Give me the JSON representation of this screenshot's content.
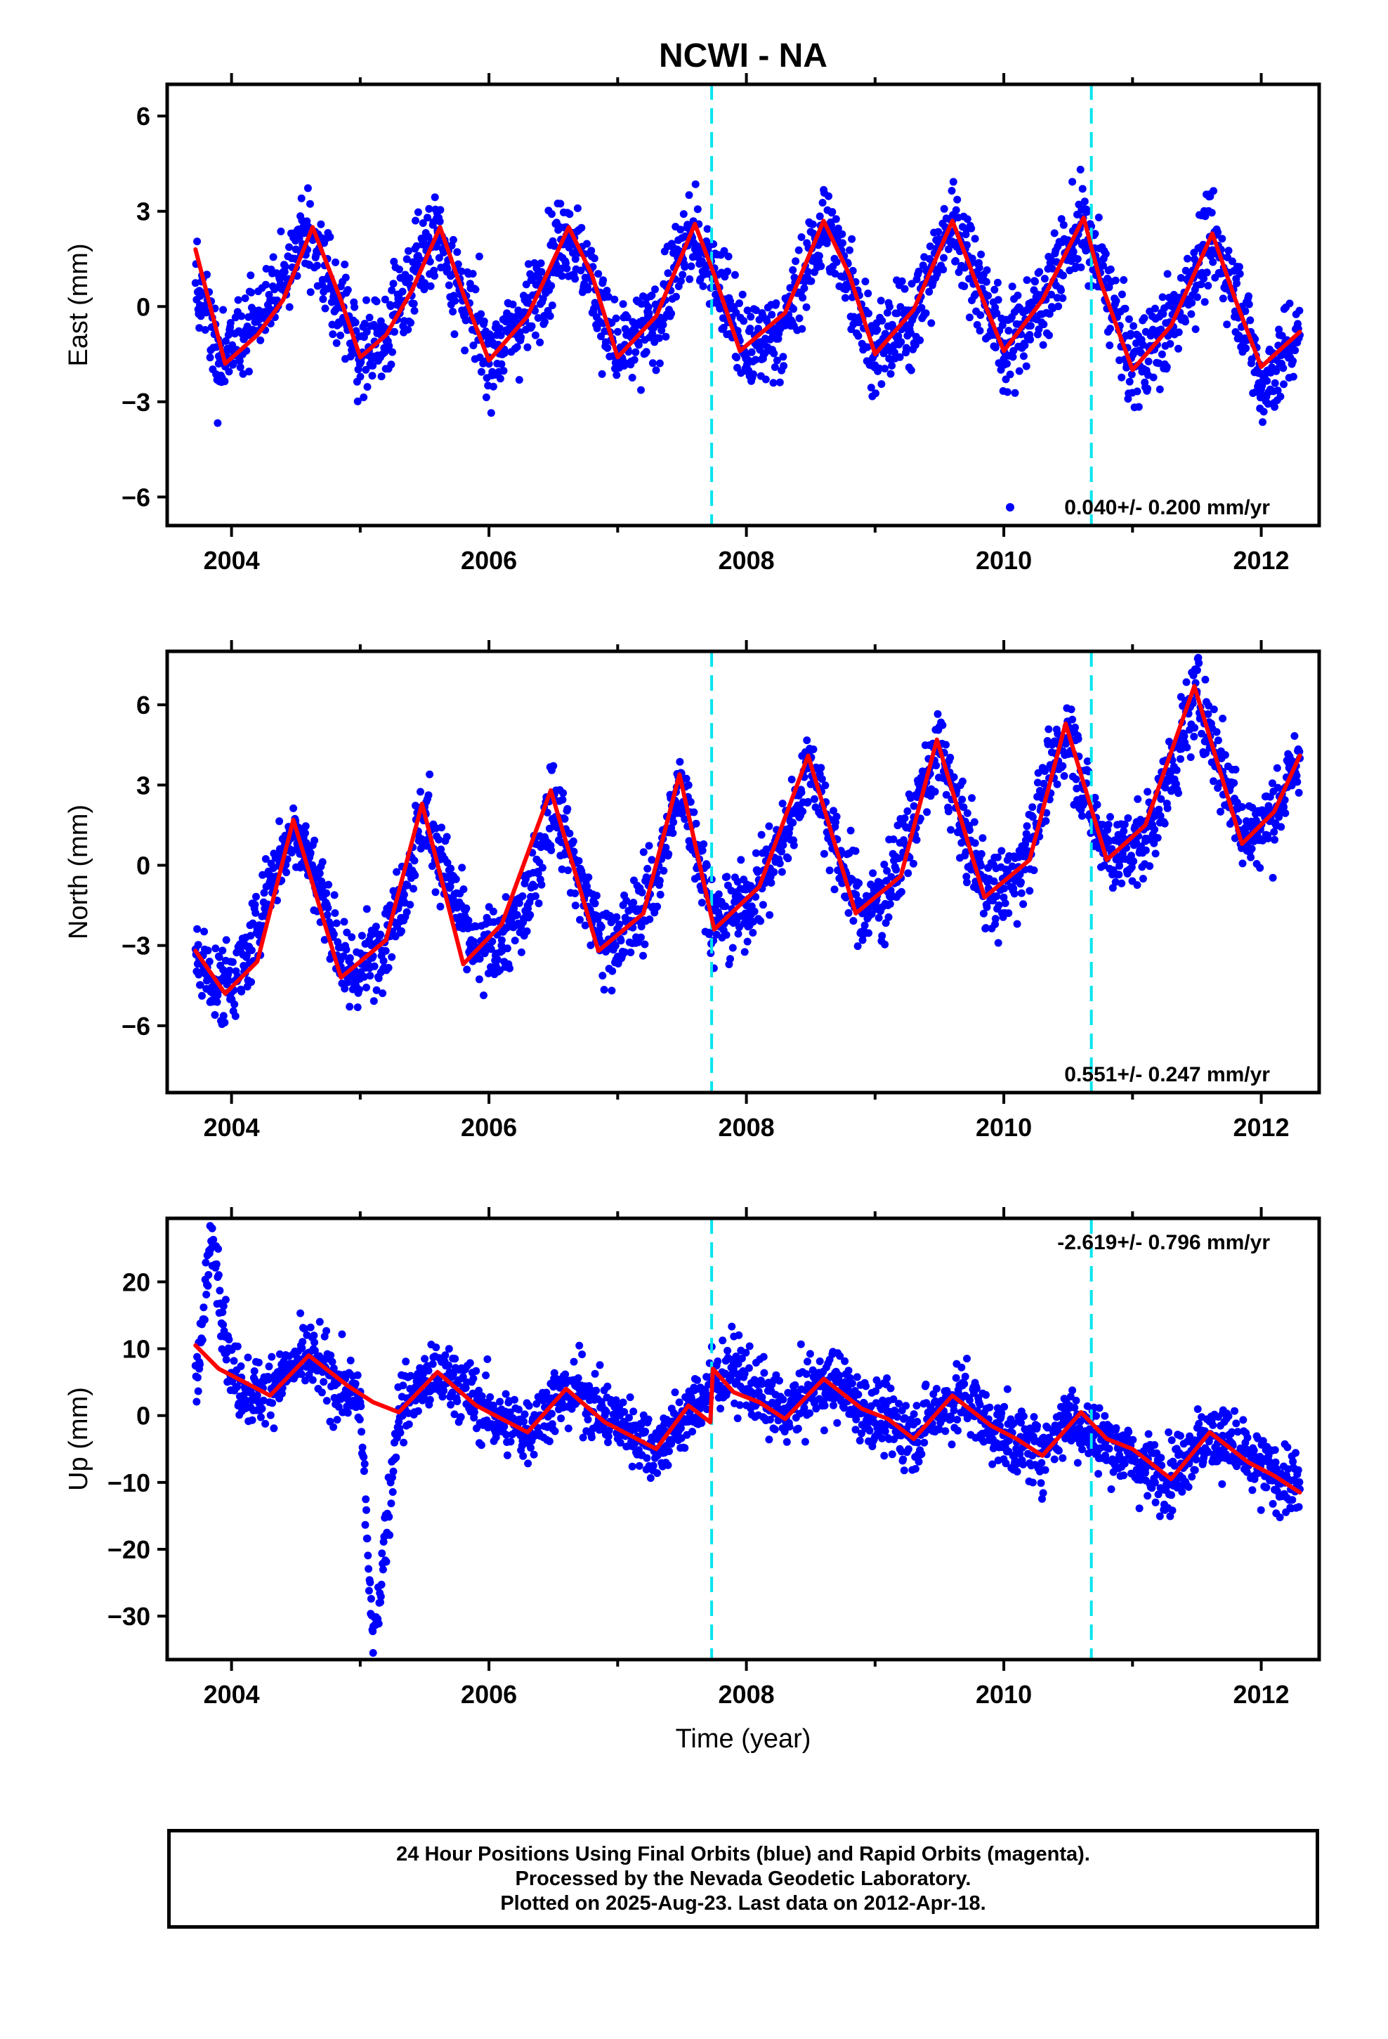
{
  "chart_data": {
    "type": "scatter",
    "title": "NCWI - NA",
    "xlabel": "Time (year)",
    "x_ticks": [
      "2004",
      "2006",
      "2008",
      "2010",
      "2012"
    ],
    "xlim": [
      2003.5,
      2012.45
    ],
    "events": [
      2007.73,
      2010.68
    ],
    "colors": {
      "points": "#0000ff",
      "model": "#ff0000",
      "events": "#00e5ee",
      "frame": "#000000"
    },
    "legend": {
      "marker": "dot",
      "placement": "bottom-right"
    },
    "panels": [
      {
        "ylabel": "East (mm)",
        "ylim": [
          -6.9,
          7.0
        ],
        "yticks": [
          6,
          3,
          0,
          -3,
          -6
        ],
        "ytick_labels": [
          "6",
          "3",
          "0",
          "−3",
          "−6"
        ],
        "rate_text": "0.040+/- 0.200 mm/yr",
        "rate_placement": "bottom-right",
        "series": [
          {
            "type": "scatter",
            "x": [
              2003.75,
              2003.9,
              2004.1,
              2004.3,
              2004.5,
              2004.6,
              2004.8,
              2005.0,
              2005.2,
              2005.45,
              2005.6,
              2005.8,
              2006.0,
              2006.3,
              2006.6,
              2006.8,
              2007.0,
              2007.3,
              2007.55,
              2007.75,
              2008.0,
              2008.3,
              2008.6,
              2008.8,
              2009.0,
              2009.3,
              2009.6,
              2009.85,
              2010.0,
              2010.3,
              2010.6,
              2010.8,
              2011.0,
              2011.3,
              2011.6,
              2011.85,
              2012.0,
              2012.2,
              2012.3
            ],
            "y": [
              0.5,
              -1.8,
              -1.0,
              0.2,
              1.8,
              2.5,
              0.5,
              -1.6,
              -1.0,
              1.6,
              2.4,
              0.3,
              -1.6,
              -0.2,
              2.5,
              0.8,
              -1.6,
              -0.5,
              2.2,
              1.2,
              -1.5,
              -0.6,
              2.6,
              1.0,
              -1.5,
              -0.3,
              2.7,
              0.4,
              -1.4,
              0.2,
              2.6,
              0.6,
              -1.9,
              -0.6,
              2.2,
              0.0,
              -2.6,
              -1.4,
              -0.9
            ]
          },
          {
            "type": "line",
            "x": [
              2003.72,
              2003.95,
              2004.2,
              2004.4,
              2004.63,
              2004.85,
              2005.0,
              2005.2,
              2005.4,
              2005.62,
              2005.8,
              2006.0,
              2006.3,
              2006.62,
              2006.8,
              2007.0,
              2007.3,
              2007.6,
              2007.75,
              2007.95,
              2008.3,
              2008.6,
              2008.8,
              2009.0,
              2009.3,
              2009.6,
              2009.8,
              2010.0,
              2010.3,
              2010.62,
              2010.75,
              2011.0,
              2011.3,
              2011.62,
              2011.8,
              2012.0,
              2012.3
            ],
            "y": [
              1.8,
              -1.8,
              -0.9,
              0.2,
              2.5,
              0.2,
              -1.6,
              -0.9,
              0.5,
              2.5,
              0.4,
              -1.7,
              -0.3,
              2.5,
              1.0,
              -1.6,
              -0.3,
              2.6,
              1.0,
              -1.4,
              -0.2,
              2.7,
              1.0,
              -1.5,
              -0.1,
              2.7,
              0.6,
              -1.4,
              0.2,
              2.8,
              0.8,
              -2.0,
              -0.6,
              2.3,
              0.2,
              -1.9,
              -0.8
            ]
          }
        ]
      },
      {
        "ylabel": "North (mm)",
        "ylim": [
          -8.5,
          8.0
        ],
        "yticks": [
          6,
          3,
          0,
          -3,
          -6
        ],
        "ytick_labels": [
          "6",
          "3",
          "0",
          "−3",
          "−6"
        ],
        "rate_text": "0.551+/- 0.247 mm/yr",
        "rate_placement": "bottom-right",
        "series": [
          {
            "type": "scatter",
            "x": [
              2003.75,
              2003.9,
              2004.1,
              2004.3,
              2004.5,
              2004.7,
              2004.9,
              2005.1,
              2005.3,
              2005.5,
              2005.7,
              2005.9,
              2006.1,
              2006.3,
              2006.5,
              2006.7,
              2006.9,
              2007.1,
              2007.3,
              2007.5,
              2007.75,
              2008.0,
              2008.3,
              2008.5,
              2008.7,
              2008.9,
              2009.1,
              2009.3,
              2009.5,
              2009.7,
              2009.9,
              2010.1,
              2010.3,
              2010.5,
              2010.7,
              2010.9,
              2011.1,
              2011.3,
              2011.5,
              2011.7,
              2011.9,
              2012.1,
              2012.3
            ],
            "y": [
              -3.5,
              -4.6,
              -3.8,
              -0.6,
              1.5,
              -1.0,
              -4.2,
              -3.4,
              -1.5,
              2.0,
              -0.8,
              -3.5,
              -2.8,
              -1.5,
              2.6,
              -0.5,
              -3.1,
              -2.3,
              -0.6,
              3.2,
              -2.2,
              -1.5,
              1.0,
              4.0,
              0.5,
              -1.8,
              -1.0,
              1.8,
              4.5,
              1.0,
              -1.2,
              -0.5,
              2.5,
              5.2,
              1.5,
              0.3,
              1.0,
              3.5,
              6.5,
              3.5,
              1.0,
              2.0,
              4.0
            ]
          },
          {
            "type": "line",
            "x": [
              2003.72,
              2003.95,
              2004.2,
              2004.48,
              2004.85,
              2005.2,
              2005.48,
              2005.8,
              2006.1,
              2006.48,
              2006.85,
              2007.2,
              2007.48,
              2007.75,
              2008.1,
              2008.48,
              2008.85,
              2009.2,
              2009.48,
              2009.85,
              2010.2,
              2010.48,
              2010.8,
              2011.1,
              2011.48,
              2011.85,
              2012.1,
              2012.3
            ],
            "y": [
              -3.2,
              -4.8,
              -3.6,
              1.7,
              -4.2,
              -2.8,
              2.3,
              -3.7,
              -2.2,
              2.8,
              -3.2,
              -1.8,
              3.4,
              -2.4,
              -0.8,
              4.1,
              -1.8,
              -0.4,
              4.7,
              -1.2,
              0.2,
              5.3,
              0.2,
              1.5,
              6.7,
              0.8,
              2.0,
              4.1
            ]
          }
        ]
      },
      {
        "ylabel": "Up (mm)",
        "ylim": [
          -36.5,
          29.5
        ],
        "yticks": [
          20,
          10,
          0,
          -10,
          -20,
          -30
        ],
        "ytick_labels": [
          "20",
          "10",
          "0",
          "−10",
          "−20",
          "−30"
        ],
        "rate_text": "-2.619+/- 0.796 mm/yr",
        "rate_placement": "top-right",
        "series": [
          {
            "type": "scatter",
            "x": [
              2003.75,
              2003.85,
              2004.0,
              2004.2,
              2004.4,
              2004.6,
              2004.8,
              2005.0,
              2005.1,
              2005.3,
              2005.5,
              2005.7,
              2005.9,
              2006.1,
              2006.3,
              2006.5,
              2006.7,
              2006.9,
              2007.1,
              2007.3,
              2007.5,
              2007.75,
              2007.9,
              2008.1,
              2008.3,
              2008.5,
              2008.7,
              2008.9,
              2009.1,
              2009.3,
              2009.5,
              2009.7,
              2009.9,
              2010.1,
              2010.3,
              2010.5,
              2010.7,
              2010.9,
              2011.1,
              2011.3,
              2011.5,
              2011.7,
              2011.9,
              2012.1,
              2012.3
            ],
            "y": [
              8.0,
              28.0,
              6.0,
              3.0,
              6.0,
              9.0,
              5.0,
              2.0,
              -35.5,
              1.0,
              5.0,
              6.0,
              2.0,
              -1.0,
              -2.0,
              2.0,
              4.0,
              0.0,
              -2.0,
              -5.0,
              -1.0,
              5.0,
              7.0,
              3.0,
              0.0,
              4.0,
              5.0,
              1.0,
              -1.0,
              -3.0,
              1.0,
              3.0,
              -2.0,
              -4.0,
              -5.5,
              0.0,
              -3.0,
              -5.0,
              -8.0,
              -9.0,
              -4.0,
              -3.0,
              -7.0,
              -9.0,
              -11.0
            ]
          },
          {
            "type": "line",
            "x": [
              2003.72,
              2003.9,
              2004.1,
              2004.3,
              2004.6,
              2004.9,
              2005.1,
              2005.3,
              2005.6,
              2005.9,
              2006.1,
              2006.3,
              2006.6,
              2006.9,
              2007.1,
              2007.3,
              2007.55,
              2007.72,
              2007.74,
              2007.9,
              2008.1,
              2008.3,
              2008.6,
              2008.9,
              2009.1,
              2009.3,
              2009.6,
              2009.9,
              2010.1,
              2010.3,
              2010.6,
              2010.8,
              2011.0,
              2011.3,
              2011.6,
              2011.9,
              2012.1,
              2012.3
            ],
            "y": [
              10.5,
              7.0,
              5.0,
              3.0,
              9.0,
              4.5,
              2.0,
              0.5,
              6.5,
              1.5,
              -0.5,
              -2.5,
              4.0,
              -1.0,
              -3.0,
              -5.0,
              1.5,
              -1.0,
              7.0,
              3.5,
              2.0,
              -0.5,
              5.5,
              1.0,
              -0.5,
              -3.5,
              3.0,
              -1.5,
              -3.5,
              -6.0,
              0.5,
              -3.5,
              -5.0,
              -9.5,
              -2.5,
              -7.0,
              -9.0,
              -11.5
            ]
          }
        ]
      }
    ]
  },
  "caption": {
    "line1": "24 Hour Positions Using Final Orbits (blue) and Rapid Orbits (magenta).",
    "line2": "Processed by the Nevada Geodetic Laboratory.",
    "line3": "Plotted on 2025-Aug-23. Last data on 2012-Apr-18."
  }
}
